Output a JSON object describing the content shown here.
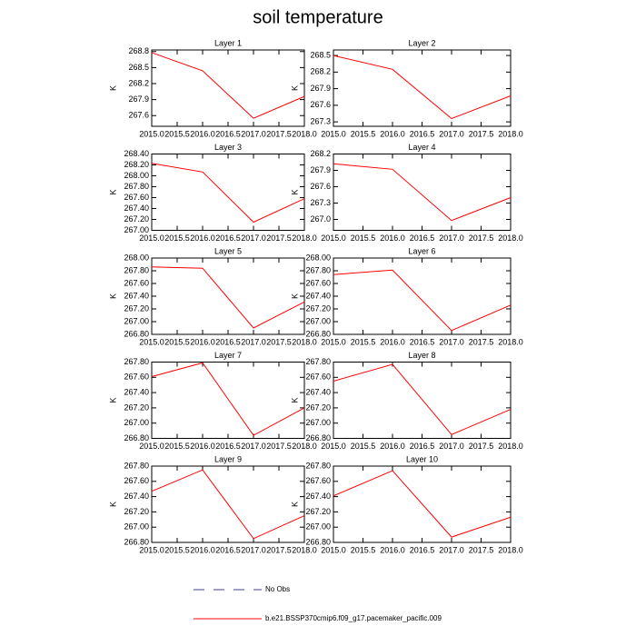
{
  "title": "soil temperature",
  "legend": [
    {
      "name": "No Obs",
      "color": "#3c3c8c",
      "dash": true
    },
    {
      "name": "b.e21.BSSP370cmip6.f09_g17.pacemaker_pacific.009",
      "color": "#ff0000",
      "dash": false
    }
  ],
  "chart_data": [
    {
      "type": "line",
      "title": "Layer 1",
      "y_label": "K",
      "x": [
        2015,
        2016,
        2017,
        2018
      ],
      "xlim": [
        2015,
        2018
      ],
      "xticks": [
        {
          "value": 2015,
          "label": "2015.0"
        },
        {
          "value": 2015.5,
          "label": "2015.5"
        },
        {
          "value": 2016,
          "label": "2016.0"
        },
        {
          "value": 2016.5,
          "label": "2016.5"
        },
        {
          "value": 2017,
          "label": "2017.0"
        },
        {
          "value": 2017.5,
          "label": "2017.5"
        },
        {
          "value": 2018,
          "label": "2018.0"
        }
      ],
      "ylim": [
        267.4,
        268.83
      ],
      "yticks": [
        267.6,
        267.9,
        268.2,
        268.5,
        268.8
      ],
      "series": [
        {
          "color": "#ff0000",
          "values": [
            268.78,
            268.44,
            267.55,
            267.96
          ]
        }
      ]
    },
    {
      "type": "line",
      "title": "Layer 2",
      "y_label": "K",
      "x": [
        2015,
        2016,
        2017,
        2018
      ],
      "xlim": [
        2015,
        2018
      ],
      "xticks": [
        {
          "value": 2015,
          "label": "2015.0"
        },
        {
          "value": 2015.5,
          "label": "2015.5"
        },
        {
          "value": 2016,
          "label": "2016.0"
        },
        {
          "value": 2016.5,
          "label": "2016.5"
        },
        {
          "value": 2017,
          "label": "2017.0"
        },
        {
          "value": 2017.5,
          "label": "2017.5"
        },
        {
          "value": 2018,
          "label": "2018.0"
        }
      ],
      "ylim": [
        267.22,
        268.6
      ],
      "yticks": [
        267.3,
        267.6,
        267.9,
        268.2,
        268.5
      ],
      "series": [
        {
          "color": "#ff0000",
          "values": [
            268.5,
            268.25,
            267.36,
            267.77
          ]
        }
      ]
    },
    {
      "type": "line",
      "title": "Layer 3",
      "y_label": "K",
      "x": [
        2015,
        2016,
        2017,
        2018
      ],
      "xlim": [
        2015,
        2018
      ],
      "xticks": [
        {
          "value": 2015,
          "label": "2015.0"
        },
        {
          "value": 2015.5,
          "label": "2015.5"
        },
        {
          "value": 2016,
          "label": "2016.0"
        },
        {
          "value": 2016.5,
          "label": "2016.5"
        },
        {
          "value": 2017,
          "label": "2017.0"
        },
        {
          "value": 2017.5,
          "label": "2017.5"
        },
        {
          "value": 2018,
          "label": "2018.0"
        }
      ],
      "ylim": [
        267.0,
        268.4
      ],
      "yticks": [
        {
          "value": 267.0,
          "label": "267.00"
        },
        {
          "value": 267.2,
          "label": "267.20"
        },
        {
          "value": 267.4,
          "label": "267.40"
        },
        {
          "value": 267.6,
          "label": "267.60"
        },
        {
          "value": 267.8,
          "label": "267.80"
        },
        {
          "value": 268.0,
          "label": "268.00"
        },
        {
          "value": 268.2,
          "label": "268.20"
        },
        {
          "value": 268.4,
          "label": "268.40"
        }
      ],
      "series": [
        {
          "color": "#ff0000",
          "values": [
            268.23,
            268.07,
            267.15,
            267.58
          ]
        }
      ]
    },
    {
      "type": "line",
      "title": "Layer 4",
      "y_label": "K",
      "x": [
        2015,
        2016,
        2017,
        2018
      ],
      "xlim": [
        2015,
        2018
      ],
      "xticks": [
        {
          "value": 2015,
          "label": "2015.0"
        },
        {
          "value": 2015.5,
          "label": "2015.5"
        },
        {
          "value": 2016,
          "label": "2016.0"
        },
        {
          "value": 2016.5,
          "label": "2016.5"
        },
        {
          "value": 2017,
          "label": "2017.0"
        },
        {
          "value": 2017.5,
          "label": "2017.5"
        },
        {
          "value": 2018,
          "label": "2018.0"
        }
      ],
      "ylim": [
        266.8,
        268.2
      ],
      "yticks": [
        {
          "value": 267.0,
          "label": "267.0"
        },
        267.3,
        267.6,
        267.9,
        268.2
      ],
      "series": [
        {
          "color": "#ff0000",
          "values": [
            268.02,
            267.92,
            266.98,
            267.4
          ]
        }
      ]
    },
    {
      "type": "line",
      "title": "Layer 5",
      "y_label": "K",
      "x": [
        2015,
        2016,
        2017,
        2018
      ],
      "xlim": [
        2015,
        2018
      ],
      "xticks": [
        {
          "value": 2015,
          "label": "2015.0"
        },
        {
          "value": 2015.5,
          "label": "2015.5"
        },
        {
          "value": 2016,
          "label": "2016.0"
        },
        {
          "value": 2016.5,
          "label": "2016.5"
        },
        {
          "value": 2017,
          "label": "2017.0"
        },
        {
          "value": 2017.5,
          "label": "2017.5"
        },
        {
          "value": 2018,
          "label": "2018.0"
        }
      ],
      "ylim": [
        266.8,
        268.0
      ],
      "yticks": [
        {
          "value": 266.8,
          "label": "266.80"
        },
        {
          "value": 267.0,
          "label": "267.00"
        },
        {
          "value": 267.2,
          "label": "267.20"
        },
        {
          "value": 267.4,
          "label": "267.40"
        },
        {
          "value": 267.6,
          "label": "267.60"
        },
        {
          "value": 267.8,
          "label": "267.80"
        },
        {
          "value": 268.0,
          "label": "268.00"
        }
      ],
      "series": [
        {
          "color": "#ff0000",
          "values": [
            267.86,
            267.84,
            266.9,
            267.31
          ]
        }
      ]
    },
    {
      "type": "line",
      "title": "Layer 6",
      "y_label": "K",
      "x": [
        2015,
        2016,
        2017,
        2018
      ],
      "xlim": [
        2015,
        2018
      ],
      "xticks": [
        {
          "value": 2015,
          "label": "2015.0"
        },
        {
          "value": 2015.5,
          "label": "2015.5"
        },
        {
          "value": 2016,
          "label": "2016.0"
        },
        {
          "value": 2016.5,
          "label": "2016.5"
        },
        {
          "value": 2017,
          "label": "2017.0"
        },
        {
          "value": 2017.5,
          "label": "2017.5"
        },
        {
          "value": 2018,
          "label": "2018.0"
        }
      ],
      "ylim": [
        266.8,
        268.0
      ],
      "yticks": [
        {
          "value": 266.8,
          "label": "266.80"
        },
        {
          "value": 267.0,
          "label": "267.00"
        },
        {
          "value": 267.2,
          "label": "267.20"
        },
        {
          "value": 267.4,
          "label": "267.40"
        },
        {
          "value": 267.6,
          "label": "267.60"
        },
        {
          "value": 267.8,
          "label": "267.80"
        },
        {
          "value": 268.0,
          "label": "268.00"
        }
      ],
      "series": [
        {
          "color": "#ff0000",
          "values": [
            267.74,
            267.81,
            266.86,
            267.26
          ]
        }
      ]
    },
    {
      "type": "line",
      "title": "Layer 7",
      "y_label": "K",
      "x": [
        2015,
        2016,
        2017,
        2018
      ],
      "xlim": [
        2015,
        2018
      ],
      "xticks": [
        {
          "value": 2015,
          "label": "2015.0"
        },
        {
          "value": 2015.5,
          "label": "2015.5"
        },
        {
          "value": 2016,
          "label": "2016.0"
        },
        {
          "value": 2016.5,
          "label": "2016.5"
        },
        {
          "value": 2017,
          "label": "2017.0"
        },
        {
          "value": 2017.5,
          "label": "2017.5"
        },
        {
          "value": 2018,
          "label": "2018.0"
        }
      ],
      "ylim": [
        266.8,
        267.8
      ],
      "yticks": [
        {
          "value": 266.8,
          "label": "266.80"
        },
        {
          "value": 267.0,
          "label": "267.00"
        },
        {
          "value": 267.2,
          "label": "267.20"
        },
        {
          "value": 267.4,
          "label": "267.40"
        },
        {
          "value": 267.6,
          "label": "267.60"
        },
        {
          "value": 267.8,
          "label": "267.80"
        }
      ],
      "series": [
        {
          "color": "#ff0000",
          "values": [
            267.61,
            267.79,
            266.84,
            267.2
          ]
        }
      ]
    },
    {
      "type": "line",
      "title": "Layer 8",
      "y_label": "K",
      "x": [
        2015,
        2016,
        2017,
        2018
      ],
      "xlim": [
        2015,
        2018
      ],
      "xticks": [
        {
          "value": 2015,
          "label": "2015.0"
        },
        {
          "value": 2015.5,
          "label": "2015.5"
        },
        {
          "value": 2016,
          "label": "2016.0"
        },
        {
          "value": 2016.5,
          "label": "2016.5"
        },
        {
          "value": 2017,
          "label": "2017.0"
        },
        {
          "value": 2017.5,
          "label": "2017.5"
        },
        {
          "value": 2018,
          "label": "2018.0"
        }
      ],
      "ylim": [
        266.8,
        267.8
      ],
      "yticks": [
        {
          "value": 266.8,
          "label": "266.80"
        },
        {
          "value": 267.0,
          "label": "267.00"
        },
        {
          "value": 267.2,
          "label": "267.20"
        },
        {
          "value": 267.4,
          "label": "267.40"
        },
        {
          "value": 267.6,
          "label": "267.60"
        },
        {
          "value": 267.8,
          "label": "267.80"
        }
      ],
      "series": [
        {
          "color": "#ff0000",
          "values": [
            267.55,
            267.77,
            266.85,
            267.18
          ]
        }
      ]
    },
    {
      "type": "line",
      "title": "Layer 9",
      "y_label": "K",
      "x": [
        2015,
        2016,
        2017,
        2018
      ],
      "xlim": [
        2015,
        2018
      ],
      "xticks": [
        {
          "value": 2015,
          "label": "2015.0"
        },
        {
          "value": 2015.5,
          "label": "2015.5"
        },
        {
          "value": 2016,
          "label": "2016.0"
        },
        {
          "value": 2016.5,
          "label": "2016.5"
        },
        {
          "value": 2017,
          "label": "2017.0"
        },
        {
          "value": 2017.5,
          "label": "2017.5"
        },
        {
          "value": 2018,
          "label": "2018.0"
        }
      ],
      "ylim": [
        266.8,
        267.8
      ],
      "yticks": [
        {
          "value": 266.8,
          "label": "266.80"
        },
        {
          "value": 267.0,
          "label": "267.00"
        },
        {
          "value": 267.2,
          "label": "267.20"
        },
        {
          "value": 267.4,
          "label": "267.40"
        },
        {
          "value": 267.6,
          "label": "267.60"
        },
        {
          "value": 267.8,
          "label": "267.80"
        }
      ],
      "series": [
        {
          "color": "#ff0000",
          "values": [
            267.47,
            267.75,
            266.85,
            267.15
          ]
        }
      ]
    },
    {
      "type": "line",
      "title": "Layer 10",
      "y_label": "K",
      "x": [
        2015,
        2016,
        2017,
        2018
      ],
      "xlim": [
        2015,
        2018
      ],
      "xticks": [
        {
          "value": 2015,
          "label": "2015.0"
        },
        {
          "value": 2015.5,
          "label": "2015.5"
        },
        {
          "value": 2016,
          "label": "2016.0"
        },
        {
          "value": 2016.5,
          "label": "2016.5"
        },
        {
          "value": 2017,
          "label": "2017.0"
        },
        {
          "value": 2017.5,
          "label": "2017.5"
        },
        {
          "value": 2018,
          "label": "2018.0"
        }
      ],
      "ylim": [
        266.8,
        267.8
      ],
      "yticks": [
        {
          "value": 266.8,
          "label": "266.80"
        },
        {
          "value": 267.0,
          "label": "267.00"
        },
        {
          "value": 267.2,
          "label": "267.20"
        },
        {
          "value": 267.4,
          "label": "267.40"
        },
        {
          "value": 267.6,
          "label": "267.60"
        },
        {
          "value": 267.8,
          "label": "267.80"
        }
      ],
      "series": [
        {
          "color": "#ff0000",
          "values": [
            267.41,
            267.74,
            266.87,
            267.13
          ]
        }
      ]
    }
  ]
}
